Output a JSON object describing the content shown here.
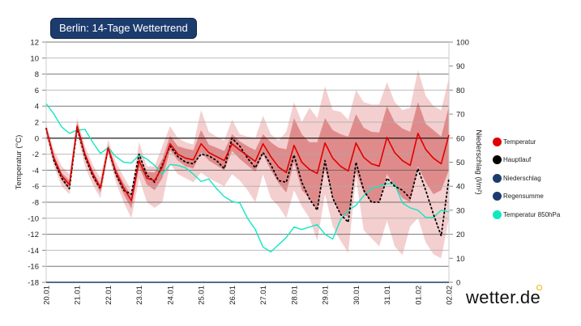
{
  "title": "Berlin: 14-Tage Wettertrend",
  "logo": "wetter.de",
  "legend": [
    {
      "label": "Temperatur",
      "color": "#e00000"
    },
    {
      "label": "Hauptlauf",
      "color": "#000000"
    },
    {
      "label": "Niederschlag",
      "color": "#1d3c6e"
    },
    {
      "label": "Regensumme",
      "color": "#1d3c6e"
    },
    {
      "label": "Temperatur 850hPa",
      "color": "#11e8c0"
    }
  ],
  "chart_data": {
    "type": "line",
    "ylabel": "Temperatur (°C)",
    "y2label": "Niederschlag (l/m²)",
    "ylim": [
      -18,
      12
    ],
    "y2lim": [
      0,
      100
    ],
    "yticks": [
      12,
      10,
      8,
      6,
      4,
      2,
      0,
      -2,
      -4,
      -6,
      -8,
      -10,
      -12,
      -14,
      -16,
      -18
    ],
    "y2ticks": [
      100,
      90,
      80,
      70,
      60,
      50,
      40,
      30,
      20,
      10,
      0
    ],
    "xticks": [
      "20.01",
      "21.01",
      "22.01",
      "23.01",
      "24.01",
      "25.01",
      "26.01",
      "27.01",
      "28.01",
      "29.01",
      "30.01",
      "31.01",
      "01.02",
      "02.02"
    ],
    "points_per_day": 4,
    "grid": true,
    "legend_position": "right",
    "series": [
      {
        "name": "Temperatur",
        "color": "#e00000",
        "values": [
          1.2,
          -2.5,
          -4.7,
          -5.8,
          1.5,
          -2,
          -4.4,
          -6.2,
          -1.2,
          -4.2,
          -6.2,
          -7.8,
          -2.8,
          -5,
          -5.3,
          -3.6,
          -0.7,
          -2,
          -2.5,
          -2.7,
          -0.7,
          -1.8,
          -2.3,
          -2.8,
          -0.7,
          -1.5,
          -2.2,
          -2.9,
          -0.7,
          -2.3,
          -3.6,
          -4.3,
          -0.9,
          -3,
          -3.9,
          -4.4,
          -0.6,
          -2.5,
          -3.5,
          -4.1,
          -0.6,
          -2.4,
          -3.2,
          -3.5,
          0.1,
          -1.8,
          -2.8,
          -3.4,
          0.6,
          -1.4,
          -2.5,
          -3.2,
          0.4
        ]
      },
      {
        "name": "Hauptlauf",
        "color": "#000000",
        "values": [
          1.2,
          -2.8,
          -5,
          -6.3,
          1.3,
          -2.3,
          -4.7,
          -6.3,
          -1.2,
          -4.5,
          -6.5,
          -7,
          -2,
          -4.6,
          -5.5,
          -3.3,
          -1,
          -2.3,
          -3,
          -3.2,
          -2,
          -2.2,
          -2.8,
          -3.8,
          0,
          -1,
          -2.5,
          -3.7,
          -1.8,
          -3.3,
          -5.3,
          -5.5,
          -2.1,
          -5.5,
          -7.6,
          -9,
          -2.8,
          -7.5,
          -9.5,
          -10.5,
          -3,
          -6.5,
          -8,
          -8,
          -5,
          -6,
          -6.5,
          -7.5,
          -3.8,
          -6.5,
          -9.5,
          -12.2,
          -5
        ]
      },
      {
        "name": "Temperatur 850hPa",
        "color": "#11e8c0",
        "values": [
          4.3,
          3,
          1.4,
          0.6,
          1,
          1.1,
          -0.5,
          -1.9,
          -1.2,
          -2.3,
          -3,
          -3.1,
          -2.1,
          -2.6,
          -3.4,
          -4.5,
          -3.3,
          -3.4,
          -3.7,
          -4.5,
          -5.4,
          -5.1,
          -6.3,
          -7.3,
          -7.9,
          -8.1,
          -10,
          -11.4,
          -13.6,
          -14.2,
          -13.3,
          -12.4,
          -11.1,
          -11.4,
          -11.1,
          -10.8,
          -12,
          -12.6,
          -10.2,
          -9,
          -8.4,
          -7.2,
          -6.3,
          -6,
          -5.7,
          -5.7,
          -8.1,
          -8.7,
          -9,
          -9.9,
          -9.9,
          -9,
          -9.2
        ]
      }
    ],
    "bands": {
      "inner": {
        "color": "#e08b8b",
        "high": [
          1.5,
          -2.1,
          -4.3,
          -5.3,
          2,
          -1.6,
          -4,
          -5.8,
          -0.8,
          -3.8,
          -5.6,
          -7.2,
          -2.2,
          -4.2,
          -4.3,
          -2.6,
          0.3,
          -1,
          -1.3,
          -1.5,
          1,
          -0.8,
          -1.2,
          -1.6,
          0.5,
          -0.4,
          -1,
          -1.5,
          0.5,
          -0.5,
          -1.2,
          -1.4,
          2.5,
          0.5,
          -0.5,
          -0.5,
          2.5,
          1,
          0.5,
          0.2,
          3,
          1.3,
          0.8,
          0.7,
          4,
          2,
          1.2,
          0.8,
          4.5,
          1.8,
          1,
          0.2,
          4
        ],
        "low": [
          0.9,
          -3,
          -5.3,
          -6.5,
          1,
          -2.6,
          -5,
          -6.8,
          -1.6,
          -4.8,
          -7,
          -8.8,
          -3.6,
          -5.8,
          -6.5,
          -5,
          -1.5,
          -2.8,
          -3.5,
          -3.8,
          -1.8,
          -2.8,
          -3.4,
          -4,
          -1.6,
          -2.6,
          -3.4,
          -4.2,
          -2,
          -4,
          -5.6,
          -6.8,
          -3,
          -6.5,
          -7.5,
          -9,
          -3.8,
          -7.5,
          -9.5,
          -9.8,
          -4.2,
          -6.8,
          -8,
          -8,
          -4.5,
          -6,
          -7.5,
          -8,
          -3.5,
          -5.5,
          -7,
          -6.5,
          -4
        ]
      },
      "outer": {
        "color": "#f4cfcf",
        "high": [
          1.8,
          -1.5,
          -3.5,
          -4.5,
          2.5,
          -1,
          -3.3,
          -5,
          -0.2,
          -3,
          -4.8,
          -6.5,
          -0.5,
          -3.5,
          -3.5,
          -1,
          1.5,
          0,
          -0.5,
          -0.8,
          3.5,
          0.8,
          0.2,
          -0.3,
          2.3,
          0.5,
          0.2,
          0,
          2.8,
          0.5,
          -0.3,
          0.8,
          4.5,
          2,
          3.8,
          2.5,
          6.5,
          3.5,
          3.3,
          2.3,
          6,
          4.5,
          4.2,
          4.2,
          7,
          4.5,
          3.5,
          3.8,
          8.5,
          5.3,
          4,
          3.5,
          7.5
        ],
        "low": [
          0.3,
          -3.5,
          -6,
          -7,
          0.5,
          -3.5,
          -5.8,
          -7.5,
          -2,
          -5.5,
          -8,
          -10,
          -5,
          -8,
          -8.7,
          -8,
          -3.2,
          -4.5,
          -5,
          -5.5,
          -4.3,
          -5,
          -5.5,
          -6,
          -4.5,
          -5.3,
          -6.5,
          -8,
          -4.5,
          -7.5,
          -8.5,
          -10,
          -6.5,
          -8.5,
          -10,
          -12.8,
          -7,
          -11,
          -12.8,
          -14.3,
          -5,
          -11.5,
          -12.5,
          -13.5,
          -10.3,
          -13.5,
          -14.6,
          -11,
          -10,
          -13,
          -14.5,
          -15,
          -10
        ]
      }
    }
  }
}
